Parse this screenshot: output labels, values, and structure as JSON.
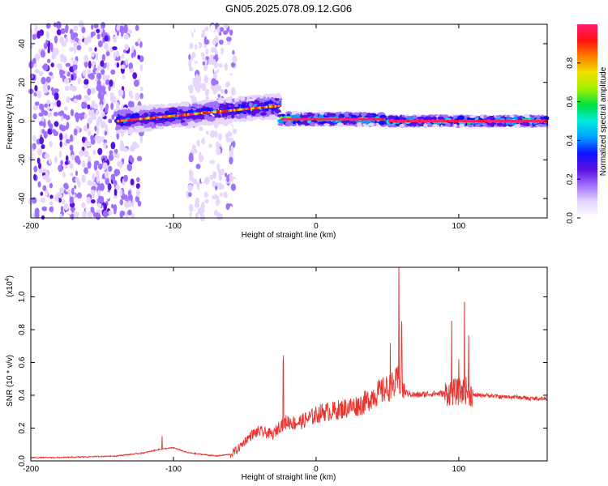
{
  "title": "GN05.2025.078.09.12.G06",
  "colors": {
    "snr_line": "#e8342f",
    "frame": "#000000"
  },
  "chart_data": [
    {
      "type": "heatmap",
      "panel": "spectrogram",
      "xlabel": "Height of straight line (km)",
      "ylabel": "Frequency (Hz)",
      "xlim": [
        -200,
        162
      ],
      "ylim": [
        -50,
        50
      ],
      "xticks": [
        "-200",
        "-100",
        "0",
        "100"
      ],
      "xtick_values": [
        -200,
        -100,
        0,
        100
      ],
      "yticks": [
        "-40",
        "-20",
        "0",
        "20",
        "40"
      ],
      "ytick_values": [
        -40,
        -20,
        0,
        20,
        40
      ],
      "colorbar": {
        "label": "Normalized spectral amplitude",
        "range": [
          0,
          1
        ],
        "ticks": [
          "0.0",
          "0.2",
          "0.4",
          "0.6",
          "0.8"
        ],
        "tick_values": [
          0.0,
          0.2,
          0.4,
          0.6,
          0.8
        ],
        "colors": [
          "#ffffff",
          "#e6d6ff",
          "#a070ff",
          "#5a10e0",
          "#1010ff",
          "#00a0ff",
          "#00e8e0",
          "#00e040",
          "#a0f000",
          "#f0e000",
          "#ff8000",
          "#ff1010",
          "#ff1e70"
        ]
      },
      "regions": [
        {
          "x": [
            -200,
            -122
          ],
          "freq_center": 0,
          "freq_halfwidth": 50,
          "amplitude": 0.12,
          "note": "broadband noise"
        },
        {
          "x": [
            -90,
            -57
          ],
          "freq_center": 0,
          "freq_halfwidth": 50,
          "amplitude": 0.08,
          "note": "broadband noise"
        },
        {
          "x": [
            -140,
            -25
          ],
          "freq_center": [
            0,
            8
          ],
          "freq_halfwidth": 6,
          "amplitude": 0.35,
          "note": "signal band rising"
        },
        {
          "x": [
            -25,
            48
          ],
          "freq_center": 1,
          "freq_halfwidth": 3,
          "amplitude": 0.6
        },
        {
          "x": [
            50,
            162
          ],
          "freq_center": 0,
          "freq_halfwidth": 2.5,
          "amplitude": 0.55
        }
      ]
    },
    {
      "type": "line",
      "panel": "snr",
      "xlabel": "Height of straight line (km)",
      "ylabel": "SNR (10 * v/v)",
      "yunit": "(x10",
      "yunit_exp": "4",
      "yunit_close": ")",
      "xlim": [
        -200,
        162
      ],
      "ylim": [
        0,
        1.18
      ],
      "xticks": [
        "-200",
        "-100",
        "0",
        "100"
      ],
      "xtick_values": [
        -200,
        -100,
        0,
        100
      ],
      "yticks": [
        "0.0",
        "0.2",
        "0.4",
        "0.6",
        "0.8",
        "1.0"
      ],
      "ytick_values": [
        0.0,
        0.2,
        0.4,
        0.6,
        0.8,
        1.0
      ],
      "series": [
        {
          "x": [
            -200,
            -180,
            -160,
            -140,
            -130,
            -120,
            -110,
            -100,
            -90,
            -80,
            -70,
            -60,
            -55,
            -50,
            -45,
            -40,
            -35,
            -30,
            -25,
            -20,
            -15,
            -10,
            -5,
            0,
            5,
            10,
            15,
            20,
            25,
            30,
            35,
            40,
            45,
            50,
            55,
            58,
            60,
            62,
            65,
            70,
            80,
            90,
            95,
            100,
            105,
            110,
            120,
            130,
            140,
            150,
            162
          ],
          "values": [
            0.02,
            0.02,
            0.025,
            0.03,
            0.04,
            0.05,
            0.07,
            0.08,
            0.05,
            0.04,
            0.03,
            0.04,
            0.07,
            0.12,
            0.16,
            0.18,
            0.17,
            0.16,
            0.22,
            0.24,
            0.23,
            0.24,
            0.26,
            0.28,
            0.3,
            0.3,
            0.31,
            0.32,
            0.33,
            0.34,
            0.36,
            0.4,
            0.42,
            0.44,
            0.46,
            0.5,
            0.45,
            0.42,
            0.41,
            0.4,
            0.41,
            0.41,
            0.42,
            0.42,
            0.43,
            0.4,
            0.4,
            0.39,
            0.39,
            0.38,
            0.38
          ]
        }
      ],
      "peaks": [
        {
          "x": -23,
          "value": 0.6
        },
        {
          "x": -108,
          "value": 0.15
        },
        {
          "x": 52,
          "value": 0.72
        },
        {
          "x": 58,
          "value": 1.18
        },
        {
          "x": 60,
          "value": 0.85
        },
        {
          "x": 95,
          "value": 0.85
        },
        {
          "x": 100,
          "value": 0.62
        },
        {
          "x": 104,
          "value": 0.97
        },
        {
          "x": 107,
          "value": 0.72
        }
      ]
    }
  ]
}
